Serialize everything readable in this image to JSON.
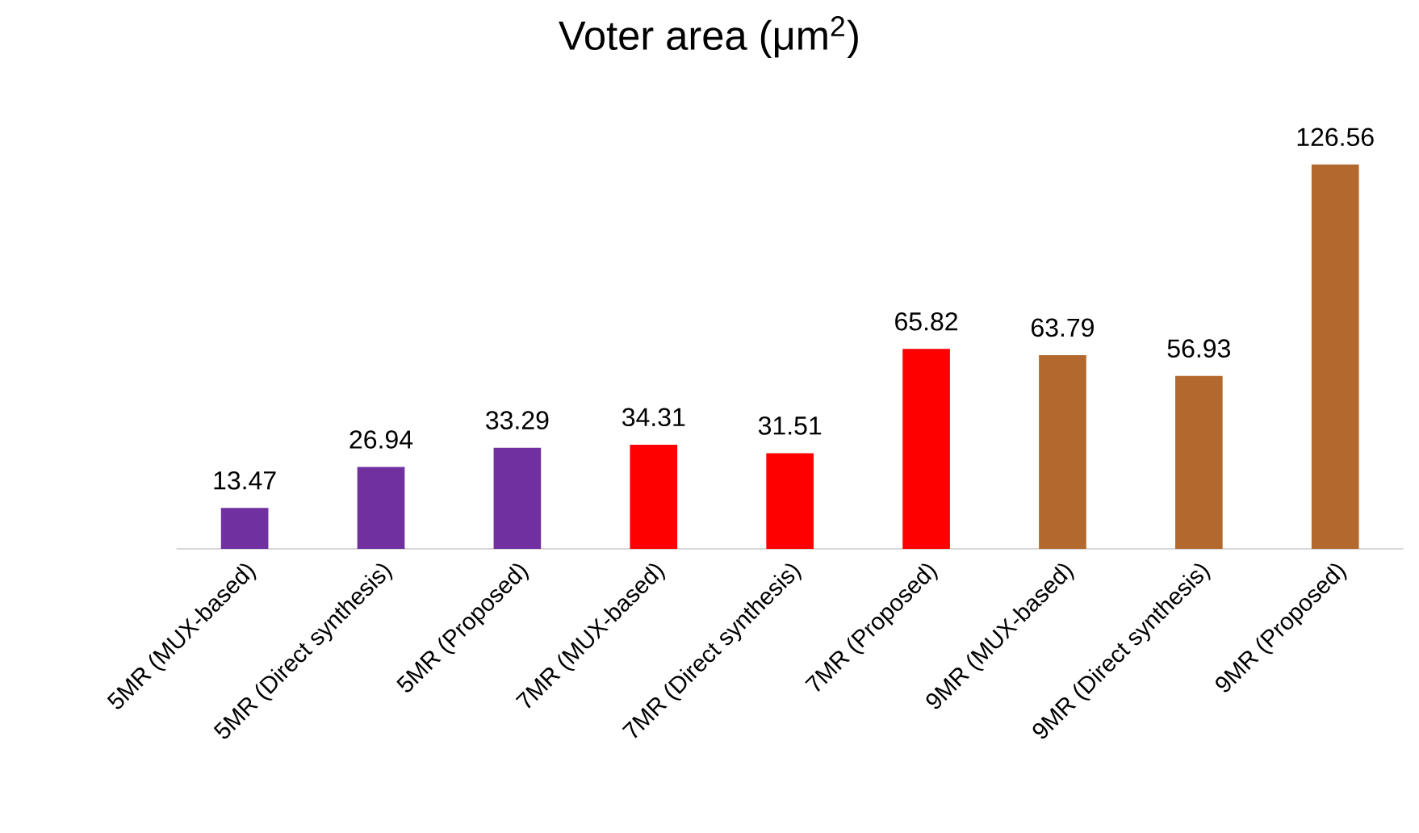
{
  "chart_data": {
    "type": "bar",
    "title": "Voter area (μm$^{2}$)",
    "categories": [
      "5MR (MUX-based)",
      "5MR (Direct synthesis)",
      "5MR (Proposed)",
      "7MR (MUX-based)",
      "7MR (Direct synthesis)",
      "7MR (Proposed)",
      "9MR (MUX-based)",
      "9MR (Direct synthesis)",
      "9MR (Proposed)"
    ],
    "values": [
      13.47,
      26.94,
      33.29,
      34.31,
      31.51,
      65.82,
      63.79,
      56.93,
      126.56
    ],
    "colors": [
      "#7030a0",
      "#7030a0",
      "#7030a0",
      "#ff0000",
      "#ff0000",
      "#ff0000",
      "#b3692d",
      "#b3692d",
      "#b3692d"
    ],
    "data_labels": true
  }
}
